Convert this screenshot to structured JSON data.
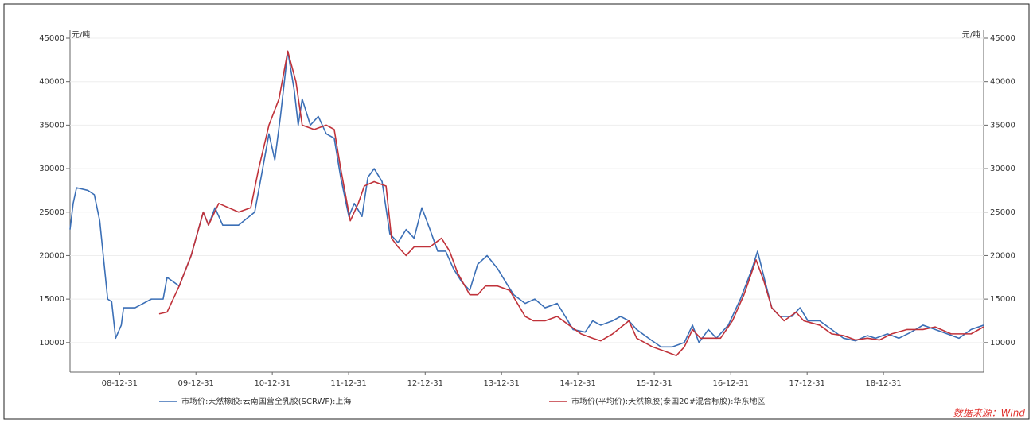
{
  "chart_data": {
    "type": "line",
    "y_label": "元/吨",
    "y2_label": "元/吨",
    "source": "数据来源：Wind",
    "xlim": [
      "2008-05-08",
      "2020-04-23"
    ],
    "xticks": [
      {
        "value": "2008-12-31",
        "label": "08-12-31"
      },
      {
        "value": "2009-12-31",
        "label": "09-12-31"
      },
      {
        "value": "2010-12-31",
        "label": "10-12-31"
      },
      {
        "value": "2011-12-31",
        "label": "11-12-31"
      },
      {
        "value": "2012-12-31",
        "label": "12-12-31"
      },
      {
        "value": "2013-12-31",
        "label": "13-12-31"
      },
      {
        "value": "2014-12-31",
        "label": "14-12-31"
      },
      {
        "value": "2015-12-31",
        "label": "15-12-31"
      },
      {
        "value": "2016-12-31",
        "label": "16-12-31"
      },
      {
        "value": "2017-12-31",
        "label": "17-12-31"
      },
      {
        "value": "2018-12-31",
        "label": "18-12-31"
      }
    ],
    "ylim": [
      6600,
      45000
    ],
    "yticks": [
      10000,
      15000,
      20000,
      25000,
      30000,
      35000,
      40000,
      45000
    ],
    "y2lim": [
      6600,
      45000
    ],
    "y2ticks": [
      10000,
      15000,
      20000,
      25000,
      30000,
      35000,
      40000,
      45000
    ],
    "series": [
      {
        "name": "市场价:天然橡胶:云南国营全乳胶(SCRWF):上海",
        "color": "#3b6fb6",
        "x": [
          "2008-05-08",
          "2008-05-23",
          "2008-06-08",
          "2008-08-01",
          "2008-09-01",
          "2008-09-27",
          "2008-11-04",
          "2008-11-23",
          "2008-12-12",
          "2009-01-08",
          "2009-01-19",
          "2009-03-15",
          "2009-06-01",
          "2009-07-27",
          "2009-08-15",
          "2009-10-12",
          "2009-12-08",
          "2010-02-04",
          "2010-03-01",
          "2010-04-01",
          "2010-05-08",
          "2010-07-23",
          "2010-10-08",
          "2010-11-15",
          "2010-12-15",
          "2011-01-12",
          "2011-02-08",
          "2011-03-15",
          "2011-04-15",
          "2011-05-04",
          "2011-05-23",
          "2011-07-01",
          "2011-08-08",
          "2011-09-15",
          "2011-10-23",
          "2011-11-23",
          "2012-01-01",
          "2012-01-27",
          "2012-03-04",
          "2012-04-01",
          "2012-05-01",
          "2012-06-08",
          "2012-07-15",
          "2012-08-23",
          "2012-10-01",
          "2012-11-08",
          "2012-12-15",
          "2013-01-23",
          "2013-03-01",
          "2013-04-08",
          "2013-05-15",
          "2013-06-23",
          "2013-08-01",
          "2013-09-08",
          "2013-10-23",
          "2013-12-12",
          "2014-01-19",
          "2014-02-27",
          "2014-04-23",
          "2014-06-08",
          "2014-07-27",
          "2014-09-23",
          "2014-11-01",
          "2014-12-08",
          "2015-02-04",
          "2015-03-12",
          "2015-04-19",
          "2015-06-15",
          "2015-07-23",
          "2015-09-01",
          "2015-10-08",
          "2015-12-04",
          "2016-02-01",
          "2016-03-27",
          "2016-05-23",
          "2016-07-01",
          "2016-08-01",
          "2016-09-15",
          "2016-10-23",
          "2016-12-19",
          "2017-02-15",
          "2017-04-12",
          "2017-05-08",
          "2017-06-08",
          "2017-07-15",
          "2017-08-23",
          "2017-10-19",
          "2017-11-27",
          "2018-01-04",
          "2018-03-01",
          "2018-04-27",
          "2018-06-23",
          "2018-08-19",
          "2018-10-15",
          "2018-11-23",
          "2019-01-19",
          "2019-03-15",
          "2019-05-12",
          "2019-07-08",
          "2019-09-04",
          "2019-11-01",
          "2019-12-27",
          "2020-02-23",
          "2020-04-23"
        ],
        "values": [
          23000,
          26000,
          27800,
          27500,
          27000,
          24000,
          15000,
          14700,
          10500,
          12000,
          14000,
          14000,
          15000,
          15000,
          17500,
          16500,
          20000,
          25000,
          23500,
          25500,
          23500,
          23500,
          25000,
          30000,
          34000,
          31000,
          36000,
          43500,
          39000,
          35000,
          38000,
          35000,
          36000,
          34000,
          33500,
          29000,
          24500,
          26000,
          24500,
          29000,
          30000,
          28500,
          22500,
          21500,
          23000,
          22000,
          25500,
          23000,
          20500,
          20500,
          18500,
          17000,
          16000,
          19000,
          20000,
          18500,
          17000,
          15500,
          14500,
          15000,
          14000,
          14500,
          13000,
          11500,
          11200,
          12500,
          12000,
          12500,
          13000,
          12500,
          11500,
          10500,
          9500,
          9500,
          10000,
          12000,
          10000,
          11500,
          10500,
          12000,
          15000,
          18500,
          20500,
          17500,
          14000,
          13000,
          13000,
          14000,
          12500,
          12500,
          11500,
          10500,
          10200,
          10800,
          10500,
          11000,
          10500,
          11200,
          12000,
          11500,
          11000,
          10500,
          11500,
          12000
        ]
      },
      {
        "name": "市场价(平均价):天然橡胶(泰国20#混合标胶):华东地区",
        "color": "#c0323a",
        "x": [
          "2009-07-08",
          "2009-08-15",
          "2009-10-12",
          "2009-12-08",
          "2010-02-04",
          "2010-03-01",
          "2010-04-19",
          "2010-07-23",
          "2010-09-19",
          "2010-10-27",
          "2010-12-15",
          "2011-02-01",
          "2011-03-15",
          "2011-04-23",
          "2011-05-23",
          "2011-07-19",
          "2011-09-15",
          "2011-10-23",
          "2011-11-23",
          "2012-01-08",
          "2012-02-15",
          "2012-03-15",
          "2012-05-01",
          "2012-06-27",
          "2012-07-23",
          "2012-08-23",
          "2012-10-01",
          "2012-11-08",
          "2013-01-23",
          "2013-03-19",
          "2013-04-27",
          "2013-06-04",
          "2013-08-01",
          "2013-09-08",
          "2013-10-15",
          "2013-12-12",
          "2014-02-08",
          "2014-04-23",
          "2014-06-01",
          "2014-07-27",
          "2014-09-23",
          "2014-11-19",
          "2015-01-15",
          "2015-03-12",
          "2015-04-19",
          "2015-06-15",
          "2015-09-01",
          "2015-10-08",
          "2015-12-23",
          "2016-02-19",
          "2016-04-15",
          "2016-05-23",
          "2016-07-01",
          "2016-08-08",
          "2016-09-15",
          "2016-11-12",
          "2017-01-08",
          "2017-03-04",
          "2017-05-01",
          "2017-06-08",
          "2017-07-15",
          "2017-09-12",
          "2017-11-08",
          "2017-12-15",
          "2018-03-01",
          "2018-04-27",
          "2018-06-23",
          "2018-08-19",
          "2018-10-15",
          "2018-12-12",
          "2019-02-08",
          "2019-04-23",
          "2019-07-08",
          "2019-09-04",
          "2019-11-19",
          "2020-02-23",
          "2020-04-23"
        ],
        "values": [
          13300,
          13500,
          16500,
          20000,
          25000,
          23500,
          26000,
          25000,
          25500,
          30000,
          35000,
          38000,
          43500,
          40000,
          35000,
          34500,
          35000,
          34500,
          30000,
          24000,
          26000,
          28000,
          28500,
          28000,
          22000,
          21000,
          20000,
          21000,
          21000,
          22000,
          20500,
          18000,
          15500,
          15500,
          16500,
          16500,
          16000,
          13000,
          12500,
          12500,
          13000,
          12000,
          11000,
          10500,
          10200,
          11000,
          12500,
          10500,
          9500,
          9000,
          8500,
          9500,
          11500,
          10500,
          10500,
          10500,
          12500,
          15500,
          19500,
          17000,
          14000,
          12500,
          13500,
          12500,
          12000,
          11000,
          10800,
          10300,
          10500,
          10300,
          11000,
          11500,
          11500,
          11800,
          11000,
          11000,
          11800
        ]
      }
    ]
  }
}
